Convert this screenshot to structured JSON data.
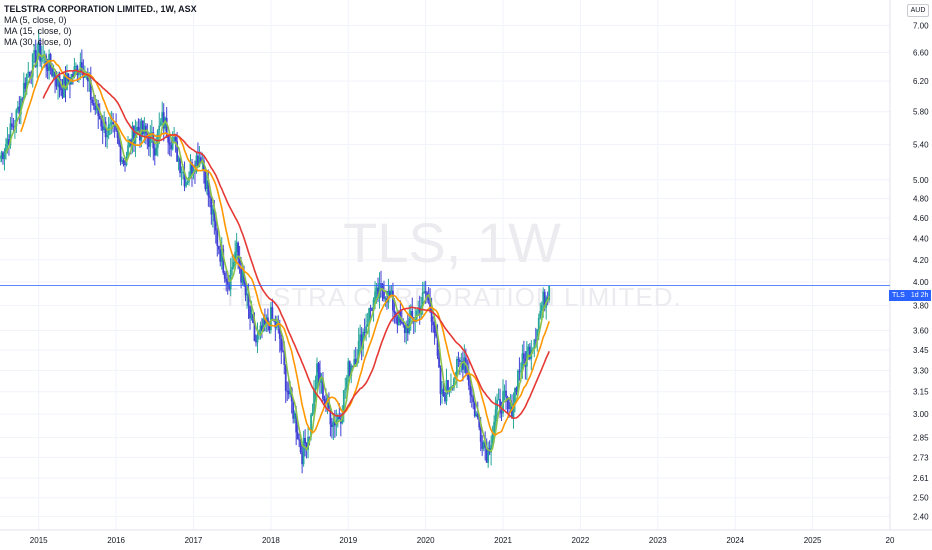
{
  "legend": {
    "title": "TELSTRA CORPORATION LIMITED., 1W, ASX",
    "ma1": "MA (5, close, 0)",
    "ma2": "MA (15, close, 0)",
    "ma3": "MA (30, close, 0)"
  },
  "watermark": {
    "symbol": "TLS, 1W",
    "name": "TELSTRA CORPORATION LIMITED."
  },
  "currency": "AUD",
  "price_tag": {
    "symbol": "TLS",
    "countdown": "1d 2h"
  },
  "colors": {
    "up": "#26a69a",
    "down": "#3f3fd6",
    "ma5": "#8bc34a",
    "ma15": "#ff9800",
    "ma30": "#e53935",
    "price_line": "#2962ff",
    "grid": "#f0f3fa"
  },
  "chart_data": {
    "type": "candlestick",
    "title": "TELSTRA CORPORATION LIMITED., 1W, ASX",
    "y_scale": "log",
    "ylim": [
      2.33,
      7.4
    ],
    "xlim": [
      2014.5,
      2026.0
    ],
    "y_ticks": [
      "7.00",
      "6.60",
      "6.20",
      "5.80",
      "5.40",
      "5.00",
      "4.80",
      "4.60",
      "4.40",
      "4.20",
      "4.00",
      "3.80",
      "3.60",
      "3.45",
      "3.30",
      "3.15",
      "3.00",
      "2.85",
      "2.73",
      "2.61",
      "2.50",
      "2.40"
    ],
    "x_ticks": [
      "2015",
      "2016",
      "2017",
      "2018",
      "2019",
      "2020",
      "2021",
      "2022",
      "2023",
      "2024",
      "2025",
      "20"
    ],
    "last_price": 3.97,
    "close_anchors": [
      [
        2014.5,
        5.25
      ],
      [
        2014.7,
        5.7
      ],
      [
        2014.85,
        6.3
      ],
      [
        2015.0,
        6.6
      ],
      [
        2015.15,
        6.4
      ],
      [
        2015.3,
        6.1
      ],
      [
        2015.45,
        6.3
      ],
      [
        2015.55,
        6.5
      ],
      [
        2015.7,
        5.9
      ],
      [
        2015.85,
        5.6
      ],
      [
        2016.0,
        5.5
      ],
      [
        2016.1,
        5.2
      ],
      [
        2016.25,
        5.6
      ],
      [
        2016.4,
        5.5
      ],
      [
        2016.5,
        5.4
      ],
      [
        2016.6,
        5.7
      ],
      [
        2016.75,
        5.4
      ],
      [
        2016.9,
        5.0
      ],
      [
        2017.0,
        5.2
      ],
      [
        2017.1,
        5.3
      ],
      [
        2017.2,
        4.8
      ],
      [
        2017.3,
        4.4
      ],
      [
        2017.45,
        4.0
      ],
      [
        2017.55,
        4.3
      ],
      [
        2017.7,
        3.8
      ],
      [
        2017.8,
        3.5
      ],
      [
        2017.9,
        3.6
      ],
      [
        2018.0,
        3.7
      ],
      [
        2018.1,
        3.6
      ],
      [
        2018.2,
        3.2
      ],
      [
        2018.3,
        3.0
      ],
      [
        2018.4,
        2.75
      ],
      [
        2018.5,
        2.9
      ],
      [
        2018.6,
        3.3
      ],
      [
        2018.7,
        3.1
      ],
      [
        2018.8,
        2.95
      ],
      [
        2018.9,
        3.0
      ],
      [
        2019.0,
        3.3
      ],
      [
        2019.15,
        3.5
      ],
      [
        2019.3,
        3.8
      ],
      [
        2019.45,
        3.95
      ],
      [
        2019.55,
        3.85
      ],
      [
        2019.7,
        3.6
      ],
      [
        2019.85,
        3.7
      ],
      [
        2020.0,
        3.9
      ],
      [
        2020.1,
        3.7
      ],
      [
        2020.2,
        3.1
      ],
      [
        2020.3,
        3.2
      ],
      [
        2020.4,
        3.3
      ],
      [
        2020.5,
        3.4
      ],
      [
        2020.6,
        3.1
      ],
      [
        2020.7,
        2.9
      ],
      [
        2020.8,
        2.75
      ],
      [
        2020.9,
        3.0
      ],
      [
        2021.0,
        3.1
      ],
      [
        2021.1,
        3.0
      ],
      [
        2021.2,
        3.3
      ],
      [
        2021.3,
        3.4
      ],
      [
        2021.4,
        3.55
      ],
      [
        2021.5,
        3.8
      ],
      [
        2021.6,
        3.97
      ]
    ]
  }
}
